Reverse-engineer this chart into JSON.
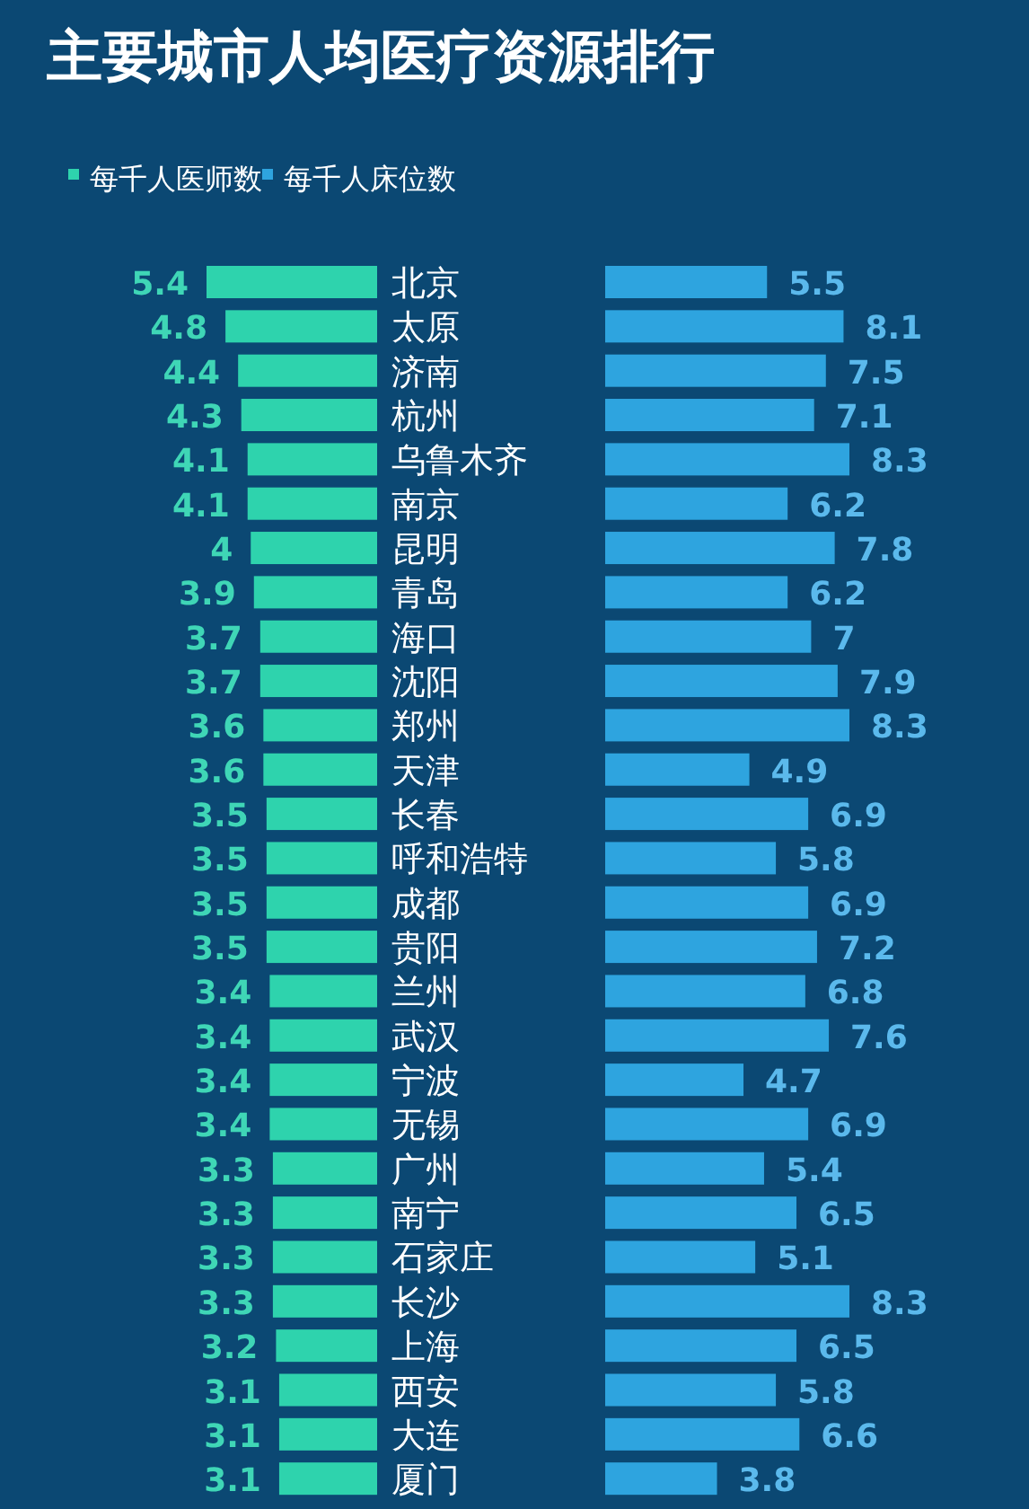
{
  "chart_data": [
    {
      "type": "bar",
      "orientation": "horizontal",
      "title": "主要城市人均医疗资源排行",
      "categories": [
        "北京",
        "太原",
        "济南",
        "杭州",
        "乌鲁木齐",
        "南京",
        "昆明",
        "青岛",
        "海口",
        "沈阳",
        "郑州",
        "天津",
        "长春",
        "呼和浩特",
        "成都",
        "贵阳",
        "兰州",
        "武汉",
        "宁波",
        "无锡",
        "广州",
        "南宁",
        "石家庄",
        "长沙",
        "上海",
        "西安",
        "大连",
        "厦门"
      ],
      "series": [
        {
          "name": "每千人医师数",
          "color": "#2ed3ad",
          "values": [
            5.4,
            4.8,
            4.4,
            4.3,
            4.1,
            4.1,
            4,
            3.9,
            3.7,
            3.7,
            3.6,
            3.6,
            3.5,
            3.5,
            3.5,
            3.5,
            3.4,
            3.4,
            3.4,
            3.4,
            3.3,
            3.3,
            3.3,
            3.3,
            3.2,
            3.1,
            3.1,
            3.1
          ]
        }
      ],
      "data_labels": true,
      "legend": "top"
    },
    {
      "type": "bar",
      "orientation": "horizontal",
      "categories": [
        null,
        null,
        null,
        null,
        null,
        null,
        null,
        null,
        null,
        null,
        null,
        null,
        null,
        null,
        null,
        null,
        null,
        null,
        null,
        null,
        null,
        null,
        null,
        null,
        null,
        null,
        null,
        null
      ],
      "series": [
        {
          "name": "每千人床位数",
          "color": "#2ea4df",
          "values": [
            5.5,
            8.1,
            7.5,
            7.1,
            8.3,
            6.2,
            7.8,
            6.2,
            7,
            7.9,
            8.3,
            4.9,
            6.9,
            5.8,
            6.9,
            7.2,
            6.8,
            7.6,
            4.7,
            6.9,
            5.4,
            6.5,
            5.1,
            8.3,
            6.5,
            5.8,
            6.6,
            3.8
          ]
        }
      ],
      "data_labels": true,
      "legend": "top left"
    }
  ]
}
